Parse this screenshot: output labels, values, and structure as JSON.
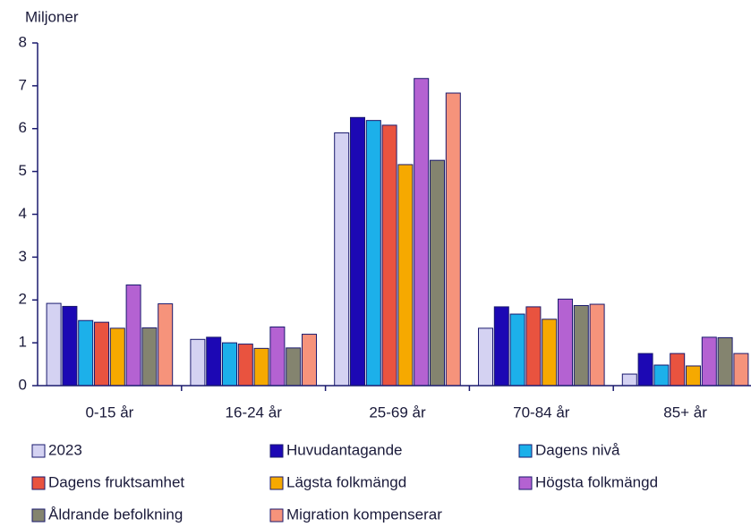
{
  "chart_data": {
    "type": "bar",
    "y_label": "Miljoner",
    "categories": [
      "0-15 år",
      "16-24 år",
      "25-69 år",
      "70-84 år",
      "85+ år"
    ],
    "series": [
      {
        "name": "2023",
        "color": "#d4d2f2",
        "values": [
          1.92,
          1.08,
          5.9,
          1.34,
          0.27
        ]
      },
      {
        "name": "Huvudantagande",
        "color": "#1c08b4",
        "values": [
          1.85,
          1.13,
          6.26,
          1.84,
          0.75
        ]
      },
      {
        "name": "Dagens nivå",
        "color": "#1cb0ea",
        "values": [
          1.52,
          1.0,
          6.19,
          1.67,
          0.48
        ]
      },
      {
        "name": "Dagens fruktsamhet",
        "color": "#e9533f",
        "values": [
          1.48,
          0.97,
          6.08,
          1.84,
          0.75
        ]
      },
      {
        "name": "Lägsta folkmängd",
        "color": "#f6a900",
        "values": [
          1.34,
          0.87,
          5.16,
          1.55,
          0.46
        ]
      },
      {
        "name": "Högsta folkmängd",
        "color": "#b462d2",
        "values": [
          2.35,
          1.37,
          7.17,
          2.02,
          1.13
        ]
      },
      {
        "name": "Åldrande befolkning",
        "color": "#84846f",
        "values": [
          1.35,
          0.88,
          5.26,
          1.87,
          1.12
        ]
      },
      {
        "name": "Migration kompenserar",
        "color": "#f6937b",
        "values": [
          1.91,
          1.2,
          6.83,
          1.9,
          0.75
        ]
      }
    ],
    "ylim": [
      0,
      8
    ],
    "yticks": [
      0,
      1,
      2,
      3,
      4,
      5,
      6,
      7,
      8
    ]
  }
}
